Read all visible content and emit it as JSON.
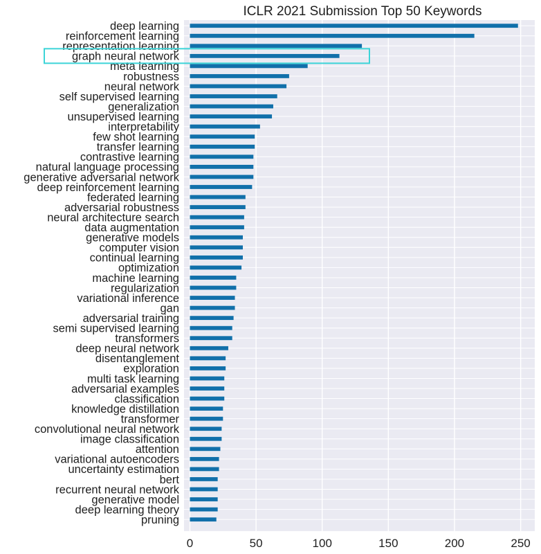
{
  "chart_data": {
    "type": "bar",
    "orientation": "horizontal",
    "title": "ICLR 2021 Submission Top 50 Keywords",
    "xlabel": "",
    "ylabel": "",
    "xlim": [
      0,
      258
    ],
    "xticks": [
      0,
      50,
      100,
      150,
      200,
      250
    ],
    "grid": true,
    "bar_color": "#1170aa",
    "plot_background": "#eaeaf2",
    "highlight_color": "#3cd4d8",
    "highlighted_category": "graph neural network",
    "categories": [
      "deep learning",
      "reinforcement learning",
      "representation learning",
      "graph neural network",
      "meta learning",
      "robustness",
      "neural network",
      "self supervised learning",
      "generalization",
      "unsupervised learning",
      "interpretability",
      "few shot learning",
      "transfer learning",
      "contrastive learning",
      "natural language processing",
      "generative adversarial network",
      "deep reinforcement learning",
      "federated learning",
      "adversarial robustness",
      "neural architecture search",
      "data augmentation",
      "generative models",
      "computer vision",
      "continual learning",
      "optimization",
      "machine learning",
      "regularization",
      "variational inference",
      "gan",
      "adversarial training",
      "semi supervised learning",
      "transformers",
      "deep neural network",
      "disentanglement",
      "exploration",
      "multi task learning",
      "adversarial examples",
      "classification",
      "knowledge distillation",
      "transformer",
      "convolutional neural network",
      "image classification",
      "attention",
      "variational autoencoders",
      "uncertainty estimation",
      "bert",
      "recurrent neural network",
      "generative model",
      "deep learning theory",
      "pruning"
    ],
    "values": [
      248,
      215,
      130,
      113,
      89,
      75,
      73,
      66,
      63,
      62,
      53,
      49,
      49,
      48,
      48,
      48,
      47,
      42,
      42,
      41,
      41,
      40,
      40,
      40,
      39,
      35,
      35,
      34,
      34,
      33,
      32,
      32,
      29,
      27,
      27,
      26,
      26,
      26,
      25,
      25,
      24,
      24,
      23,
      22,
      22,
      21,
      21,
      21,
      21,
      20
    ]
  }
}
